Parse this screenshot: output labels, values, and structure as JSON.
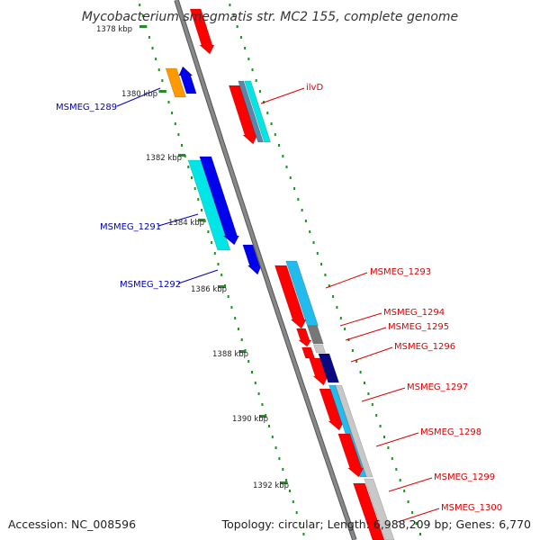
{
  "title": "Mycobacterium smegmatis str. MC2 155, complete genome",
  "footer": {
    "accession": "Accession: NC_008596",
    "summary": "Topology: circular; Length: 6,988,209 bp; Genes: 6,770"
  },
  "colors": {
    "backbone": "#888888",
    "ticks": "#2a8a2a",
    "forward_labels": "#dd0000",
    "reverse_labels": "#0000bb",
    "red": "#ff0000",
    "blue": "#0000ee",
    "cyan": "#00e6e6",
    "sky": "#22bbee",
    "orange": "#ff9900",
    "steel": "#5588aa",
    "gray": "#777777",
    "lightgray": "#c8c8c8",
    "navy": "#0a0a80"
  },
  "kbp_markers": [
    "1378 kbp",
    "1380 kbp",
    "1382 kbp",
    "1384 kbp",
    "1386 kbp",
    "1388 kbp",
    "1390 kbp",
    "1392 kbp"
  ],
  "gene_labels": [
    {
      "text": "ilvD",
      "strand": "forward"
    },
    {
      "text": "MSMEG_1289",
      "strand": "reverse"
    },
    {
      "text": "MSMEG_1291",
      "strand": "reverse"
    },
    {
      "text": "MSMEG_1292",
      "strand": "reverse"
    },
    {
      "text": "MSMEG_1293",
      "strand": "forward"
    },
    {
      "text": "MSMEG_1294",
      "strand": "forward"
    },
    {
      "text": "MSMEG_1295",
      "strand": "forward"
    },
    {
      "text": "MSMEG_1296",
      "strand": "forward"
    },
    {
      "text": "MSMEG_1297",
      "strand": "forward"
    },
    {
      "text": "MSMEG_1298",
      "strand": "forward"
    },
    {
      "text": "MSMEG_1299",
      "strand": "forward"
    },
    {
      "text": "MSMEG_1300",
      "strand": "forward"
    }
  ]
}
